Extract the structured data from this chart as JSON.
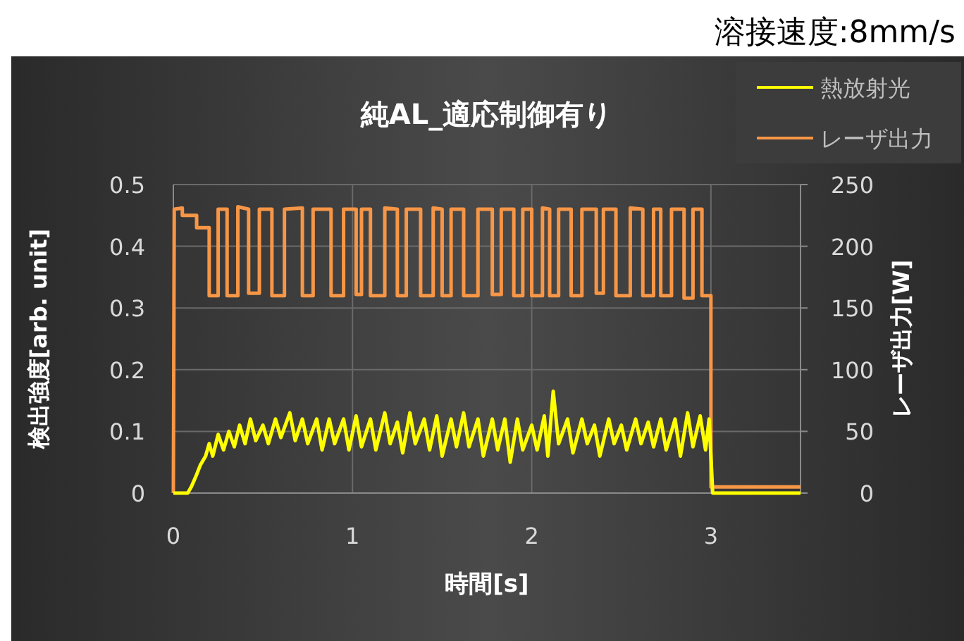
{
  "chart_data": {
    "type": "line",
    "title": "純AL_適応制御有り",
    "xlabel": "時間[s]",
    "ylabel": "検出強度[arb. unit]",
    "y2label": "レーザ出力[W]",
    "annotations": [
      "溶接速度:8mm/s"
    ],
    "xlim": [
      0,
      3.5
    ],
    "xticks": [
      0,
      1,
      2,
      3
    ],
    "ylim": [
      0,
      0.5
    ],
    "yticks": [
      0,
      0.1,
      0.2,
      0.3,
      0.4,
      0.5
    ],
    "y2lim": [
      0,
      250
    ],
    "y2ticks": [
      0,
      50,
      100,
      150,
      200,
      250
    ],
    "grid": true,
    "legend": "top right",
    "marker": "none",
    "line_style": "solid",
    "series": [
      {
        "name": "熱放射光",
        "color": "#ffff00",
        "x": [
          0,
          0.08,
          0.1,
          0.13,
          0.15,
          0.18,
          0.2,
          0.22,
          0.25,
          0.28,
          0.31,
          0.34,
          0.37,
          0.4,
          0.43,
          0.46,
          0.5,
          0.53,
          0.57,
          0.6,
          0.65,
          0.68,
          0.72,
          0.75,
          0.8,
          0.83,
          0.87,
          0.9,
          0.95,
          0.98,
          1.02,
          1.05,
          1.1,
          1.13,
          1.18,
          1.21,
          1.25,
          1.28,
          1.32,
          1.35,
          1.4,
          1.43,
          1.47,
          1.5,
          1.55,
          1.58,
          1.62,
          1.65,
          1.7,
          1.73,
          1.78,
          1.81,
          1.85,
          1.88,
          1.92,
          1.95,
          2.0,
          2.03,
          2.07,
          2.09,
          2.12,
          2.15,
          2.2,
          2.23,
          2.28,
          2.31,
          2.35,
          2.38,
          2.43,
          2.46,
          2.5,
          2.53,
          2.58,
          2.61,
          2.65,
          2.68,
          2.72,
          2.75,
          2.8,
          2.83,
          2.87,
          2.9,
          2.94,
          2.97,
          2.99,
          3.0,
          3.01,
          3.5
        ],
        "values": [
          0,
          0,
          0.01,
          0.03,
          0.045,
          0.06,
          0.08,
          0.06,
          0.095,
          0.07,
          0.1,
          0.075,
          0.11,
          0.08,
          0.12,
          0.085,
          0.11,
          0.08,
          0.12,
          0.09,
          0.13,
          0.085,
          0.12,
          0.08,
          0.12,
          0.07,
          0.12,
          0.08,
          0.12,
          0.07,
          0.125,
          0.075,
          0.12,
          0.07,
          0.13,
          0.08,
          0.115,
          0.065,
          0.13,
          0.08,
          0.12,
          0.07,
          0.125,
          0.06,
          0.12,
          0.075,
          0.13,
          0.075,
          0.12,
          0.06,
          0.12,
          0.07,
          0.12,
          0.05,
          0.12,
          0.07,
          0.11,
          0.07,
          0.125,
          0.06,
          0.165,
          0.08,
          0.12,
          0.065,
          0.12,
          0.08,
          0.11,
          0.06,
          0.12,
          0.08,
          0.11,
          0.07,
          0.12,
          0.08,
          0.115,
          0.075,
          0.12,
          0.07,
          0.12,
          0.06,
          0.13,
          0.075,
          0.125,
          0.07,
          0.12,
          0.06,
          0,
          0
        ]
      },
      {
        "name": "レーザ出力",
        "color": "#f79646",
        "axis": "y2",
        "x": [
          0,
          0.005,
          0.05,
          0.05,
          0.13,
          0.13,
          0.2,
          0.2,
          0.25,
          0.25,
          0.3,
          0.3,
          0.36,
          0.36,
          0.42,
          0.42,
          0.48,
          0.48,
          0.55,
          0.55,
          0.62,
          0.62,
          0.72,
          0.72,
          0.78,
          0.78,
          0.88,
          0.88,
          0.95,
          0.95,
          1.02,
          1.02,
          1.05,
          1.05,
          1.1,
          1.1,
          1.18,
          1.18,
          1.25,
          1.25,
          1.3,
          1.3,
          1.38,
          1.38,
          1.45,
          1.45,
          1.5,
          1.5,
          1.55,
          1.55,
          1.62,
          1.62,
          1.7,
          1.7,
          1.78,
          1.78,
          1.83,
          1.83,
          1.9,
          1.9,
          1.95,
          1.95,
          2.0,
          2.0,
          2.06,
          2.06,
          2.1,
          2.1,
          2.15,
          2.15,
          2.22,
          2.22,
          2.28,
          2.28,
          2.36,
          2.36,
          2.4,
          2.4,
          2.47,
          2.47,
          2.55,
          2.55,
          2.62,
          2.62,
          2.68,
          2.68,
          2.72,
          2.72,
          2.78,
          2.78,
          2.85,
          2.85,
          2.9,
          2.9,
          2.95,
          2.95,
          3.0,
          3.0,
          3.5
        ],
        "values": [
          0,
          230,
          231,
          225,
          225,
          215,
          215,
          160,
          160,
          230,
          230,
          160,
          160,
          232,
          230,
          162,
          162,
          230,
          230,
          160,
          160,
          230,
          231,
          160,
          160,
          230,
          230,
          160,
          160,
          230,
          230,
          161,
          161,
          230,
          230,
          160,
          160,
          231,
          230,
          160,
          160,
          230,
          230,
          160,
          160,
          231,
          230,
          160,
          160,
          230,
          230,
          160,
          160,
          230,
          230,
          161,
          161,
          230,
          230,
          160,
          160,
          230,
          230,
          160,
          160,
          231,
          230,
          160,
          160,
          230,
          230,
          160,
          160,
          230,
          230,
          162,
          162,
          230,
          230,
          160,
          160,
          231,
          230,
          160,
          160,
          230,
          230,
          160,
          160,
          230,
          230,
          158,
          158,
          230,
          230,
          160,
          160,
          5,
          5
        ]
      }
    ]
  }
}
